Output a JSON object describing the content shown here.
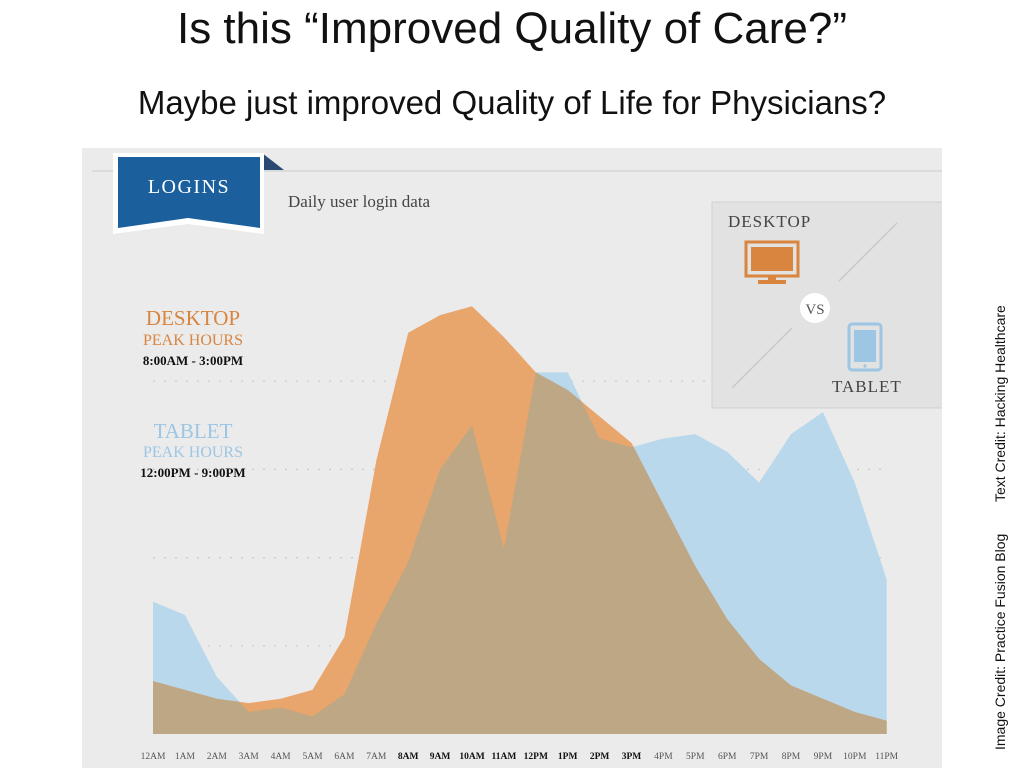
{
  "header": {
    "title": "Is this “Improved Quality of Care?”",
    "subtitle": "Maybe just improved Quality of Life for Physicians?"
  },
  "credits": {
    "image_credit": "Image Credit: Practice Fusion Blog",
    "text_credit": "Text Credit: Hacking Healthcare"
  },
  "colors": {
    "desktop": "#e8a66c",
    "tablet": "#b9d8ec",
    "overlap": "#bda784",
    "banner": "#1b5f9c",
    "desktop_text": "#d9853f",
    "tablet_text": "#9cc6e4"
  },
  "chart_data": {
    "type": "area",
    "badge": "LOGINS",
    "subtitle": "Daily user login data",
    "x": [
      "12AM",
      "1AM",
      "2AM",
      "3AM",
      "4AM",
      "5AM",
      "6AM",
      "7AM",
      "8AM",
      "9AM",
      "10AM",
      "11AM",
      "12PM",
      "1PM",
      "2PM",
      "3PM",
      "4PM",
      "5PM",
      "6PM",
      "7PM",
      "8PM",
      "9PM",
      "10PM",
      "11PM"
    ],
    "bold_ticks": [
      "8AM",
      "9AM",
      "10AM",
      "11AM",
      "12PM",
      "1PM",
      "2PM",
      "3PM"
    ],
    "ylim": [
      0,
      100
    ],
    "grid": "dotted",
    "series": [
      {
        "name": "DESKTOP",
        "values": [
          12,
          10,
          8,
          7,
          8,
          10,
          22,
          62,
          91,
          95,
          97,
          90,
          82,
          78,
          72,
          66,
          52,
          38,
          26,
          17,
          11,
          8,
          5,
          3
        ]
      },
      {
        "name": "TABLET",
        "values": [
          30,
          27,
          13,
          5,
          6,
          4,
          9,
          25,
          39,
          60,
          70,
          42,
          82,
          82,
          67,
          65,
          67,
          68,
          64,
          57,
          68,
          73,
          57,
          35
        ]
      }
    ],
    "annotations": [
      {
        "series": "DESKTOP",
        "line1": "DESKTOP",
        "line2": "PEAK HOURS",
        "line3": "8:00AM - 3:00PM"
      },
      {
        "series": "TABLET",
        "line1": "TABLET",
        "line2": "PEAK HOURS",
        "line3": "12:00PM - 9:00PM"
      }
    ],
    "legend": {
      "placement": "top-right",
      "top": "DESKTOP",
      "middle": "VS",
      "bottom": "TABLET"
    }
  }
}
